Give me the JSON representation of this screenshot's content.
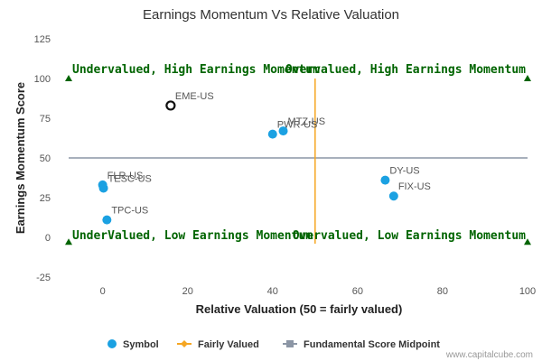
{
  "chart_data": {
    "type": "scatter",
    "title": "Earnings Momentum Vs Relative Valuation",
    "xlabel": "Relative Valuation (50 = fairly valued)",
    "ylabel": "Earnings Momentum Score",
    "xlim": [
      -8,
      100
    ],
    "ylim": [
      -25,
      125
    ],
    "xticks": [
      0,
      20,
      40,
      60,
      80,
      100
    ],
    "yticks": [
      -25,
      0,
      25,
      50,
      75,
      100,
      125
    ],
    "grid": false,
    "legend_position": "bottom",
    "points": [
      {
        "label": "EME-US",
        "x": 16,
        "y": 83,
        "highlight": true
      },
      {
        "label": "PWR-US",
        "x": 40,
        "y": 65
      },
      {
        "label": "MTZ-US",
        "x": 42.5,
        "y": 67
      },
      {
        "label": "FLR-US",
        "x": 0,
        "y": 33
      },
      {
        "label": "TESC-US",
        "x": 0.2,
        "y": 31
      },
      {
        "label": "TPC-US",
        "x": 1,
        "y": 11
      },
      {
        "label": "DY-US",
        "x": 66.5,
        "y": 36
      },
      {
        "label": "FIX-US",
        "x": 68.5,
        "y": 26
      }
    ],
    "fairly_valued_x": 50,
    "fundamental_midpoint_y": 50,
    "quadrant_labels": {
      "top_left": "Undervalued, High Earnings Momentum",
      "top_right": "Overvalued, High Earnings Momentum",
      "bottom_left": "UnderValued, Low Earnings Momentum",
      "bottom_right": "Overvalued, Low Earnings Momentum"
    },
    "legend": [
      {
        "name": "Symbol",
        "color": "#1ba1e2"
      },
      {
        "name": "Fairly Valued",
        "color": "#f5a623"
      },
      {
        "name": "Fundamental Score Midpoint",
        "color": "#8c96a5"
      }
    ],
    "colors": {
      "point": "#1ba1e2",
      "highlight_stroke": "#111111",
      "fairly_valued_line": "#f5a623",
      "midpoint_line": "#8c96a5",
      "quadrant_text": "#006400",
      "corner_markers": "#006400"
    }
  },
  "credit": "www.capitalcube.com"
}
